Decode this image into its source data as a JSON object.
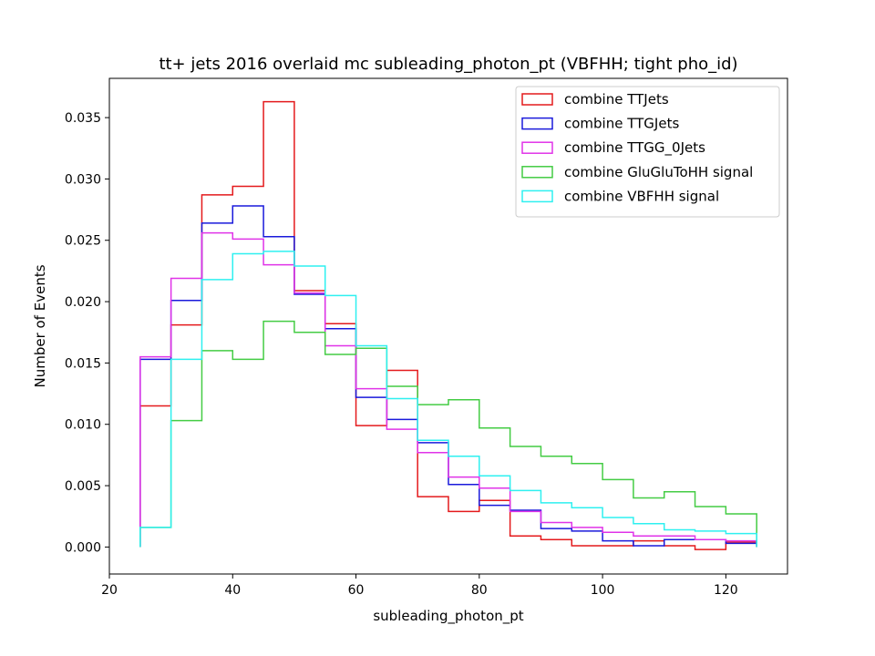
{
  "chart_data": {
    "type": "histogram-step",
    "title": "tt+ jets 2016 overlaid mc subleading_photon_pt (VBFHH; tight pho_id)",
    "xlabel": "subleading_photon_pt",
    "ylabel": "Number of Events",
    "xlim": [
      20,
      130
    ],
    "ylim": [
      -0.0022,
      0.0382
    ],
    "xticks": [
      20,
      40,
      60,
      80,
      100,
      120
    ],
    "yticks": [
      0.0,
      0.005,
      0.01,
      0.015,
      0.02,
      0.025,
      0.03,
      0.035
    ],
    "ytick_labels": [
      "0.000",
      "0.005",
      "0.010",
      "0.015",
      "0.020",
      "0.025",
      "0.030",
      "0.035"
    ],
    "grid": false,
    "legend_position": "top-right",
    "bin_edges": [
      25,
      30,
      35,
      40,
      45,
      50,
      55,
      60,
      65,
      70,
      75,
      80,
      85,
      90,
      95,
      100,
      105,
      110,
      115,
      120,
      125
    ],
    "series": [
      {
        "name": "combine TTJets",
        "color": "#e41a1c",
        "values": [
          0.0115,
          0.0181,
          0.0287,
          0.0294,
          0.0363,
          0.0209,
          0.0182,
          0.0099,
          0.0144,
          0.0041,
          0.0029,
          0.0038,
          0.0009,
          0.0006,
          0.0001,
          0.0001,
          0.0005,
          0.0001,
          -0.0002,
          0.0004
        ]
      },
      {
        "name": "combine TTGJets",
        "color": "#1a1adb",
        "values": [
          0.0153,
          0.0201,
          0.0264,
          0.0278,
          0.0253,
          0.0206,
          0.0178,
          0.0122,
          0.0104,
          0.0085,
          0.0051,
          0.0034,
          0.003,
          0.0015,
          0.0013,
          0.0005,
          0.0001,
          0.0006,
          0.0006,
          0.0003
        ]
      },
      {
        "name": "combine TTGG_0Jets",
        "color": "#e033e8",
        "values": [
          0.0155,
          0.0219,
          0.0256,
          0.0251,
          0.023,
          0.0207,
          0.0164,
          0.0129,
          0.0096,
          0.0077,
          0.0057,
          0.0048,
          0.0029,
          0.002,
          0.0016,
          0.0012,
          0.0009,
          0.0009,
          0.0006,
          0.0005
        ]
      },
      {
        "name": "combine GluGluToHH signal",
        "color": "#44cc44",
        "values": [
          0.0016,
          0.0103,
          0.016,
          0.0153,
          0.0184,
          0.0175,
          0.0157,
          0.0162,
          0.0131,
          0.0116,
          0.012,
          0.0097,
          0.0082,
          0.0074,
          0.0068,
          0.0055,
          0.004,
          0.0045,
          0.0033,
          0.0027
        ]
      },
      {
        "name": "combine VBFHH signal",
        "color": "#2ef0f0",
        "values": [
          0.0016,
          0.0153,
          0.0218,
          0.0239,
          0.0241,
          0.0229,
          0.0205,
          0.0164,
          0.0121,
          0.0087,
          0.0074,
          0.0058,
          0.0046,
          0.0036,
          0.0032,
          0.0024,
          0.0019,
          0.0014,
          0.0013,
          0.0011
        ]
      }
    ]
  }
}
